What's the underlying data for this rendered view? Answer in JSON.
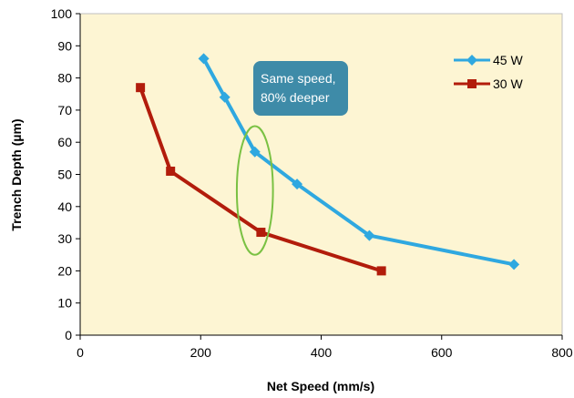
{
  "chart_data": {
    "type": "line",
    "title": "",
    "xlabel": "Net Speed (mm/s)",
    "ylabel": "Trench Depth (µm)",
    "xlim": [
      0,
      800
    ],
    "ylim": [
      0,
      100
    ],
    "xticks": [
      0,
      200,
      400,
      600,
      800
    ],
    "yticks": [
      0,
      10,
      20,
      30,
      40,
      50,
      60,
      70,
      80,
      90,
      100
    ],
    "grid": false,
    "legend_position": "top-right",
    "plot_background": "#fdf5d3",
    "series": [
      {
        "name": "45 W",
        "color": "#2fa8e0",
        "marker": "diamond",
        "points": [
          [
            205,
            86
          ],
          [
            240,
            74
          ],
          [
            290,
            57
          ],
          [
            360,
            47
          ],
          [
            480,
            31
          ],
          [
            720,
            22
          ]
        ]
      },
      {
        "name": "30 W",
        "color": "#b21c0b",
        "marker": "square",
        "points": [
          [
            100,
            77
          ],
          [
            150,
            51
          ],
          [
            300,
            32
          ],
          [
            500,
            20
          ]
        ]
      }
    ],
    "annotations": {
      "callout_lines": [
        "Same speed,",
        "80% deeper"
      ],
      "callout_color": "#3e8ba8",
      "ellipse_color": "#7ac143",
      "ellipse_center": [
        290,
        45
      ],
      "ellipse_x_radius": 30,
      "ellipse_y_radius": 20
    }
  }
}
